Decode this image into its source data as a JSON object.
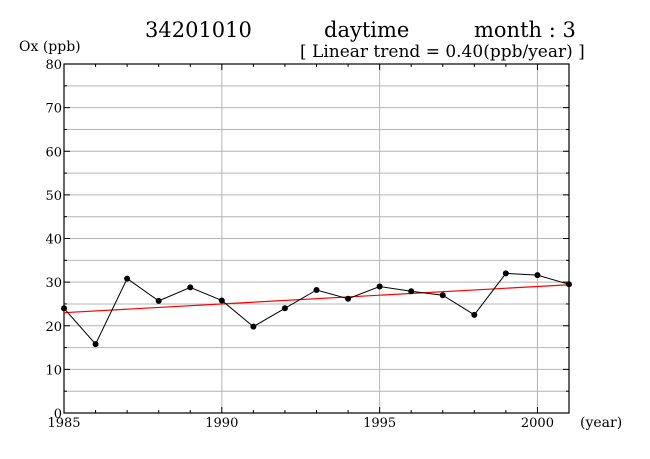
{
  "header": {
    "station": "34201010",
    "period": "daytime",
    "month": "month : 3",
    "trend": "[ Linear trend = 0.40(ppb/year) ]"
  },
  "chart_data": {
    "type": "line",
    "title": "34201010   daytime   month : 3",
    "subtitle": "[ Linear trend = 0.40(ppb/year) ]",
    "ylabel": "Ox (ppb)",
    "xlabel": "(year)",
    "xlim": [
      1985,
      2001
    ],
    "ylim": [
      0,
      80
    ],
    "xticks": [
      1985,
      1990,
      1995,
      2000
    ],
    "yticks": [
      0,
      10,
      20,
      30,
      40,
      50,
      60,
      70,
      80
    ],
    "grid": true,
    "series": [
      {
        "x": [
          1985,
          1986,
          1987,
          1988,
          1989,
          1990,
          1991,
          1992,
          1993,
          1994,
          1995,
          1996,
          1997,
          1998,
          1999,
          2000,
          2001
        ],
        "values": [
          24.0,
          15.8,
          30.8,
          25.7,
          28.8,
          25.8,
          19.8,
          24.0,
          28.2,
          26.2,
          29.0,
          27.9,
          27.0,
          22.5,
          32.0,
          31.6,
          29.5
        ],
        "color": "#000000",
        "marker": "circle"
      }
    ],
    "trend_line": {
      "x": [
        1985,
        2001
      ],
      "values": [
        23.0,
        29.4
      ],
      "slope": 0.4,
      "color": "#ff0000"
    }
  }
}
